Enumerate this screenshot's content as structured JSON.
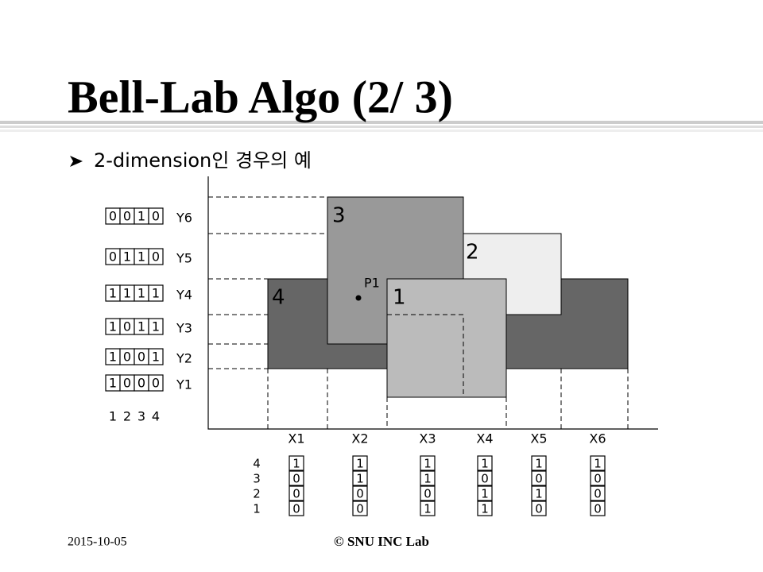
{
  "title": "Bell-Lab Algo (2/ 3)",
  "bullet": "2-dimension인 경우의 예",
  "rect_labels": [
    "3",
    "2",
    "4",
    "1"
  ],
  "point_label": "P1",
  "y_labels": [
    "Y6",
    "Y5",
    "Y4",
    "Y3",
    "Y2",
    "Y1"
  ],
  "y_bits": [
    [
      "0",
      "0",
      "1",
      "0"
    ],
    [
      "0",
      "1",
      "1",
      "0"
    ],
    [
      "1",
      "1",
      "1",
      "1"
    ],
    [
      "1",
      "0",
      "1",
      "1"
    ],
    [
      "1",
      "0",
      "0",
      "1"
    ],
    [
      "1",
      "0",
      "0",
      "0"
    ]
  ],
  "y_bit_index": [
    "1",
    "2",
    "3",
    "4"
  ],
  "x_labels": [
    "X1",
    "X2",
    "X3",
    "X4",
    "X5",
    "X6"
  ],
  "x_bits": [
    [
      "1",
      "0",
      "0",
      "0"
    ],
    [
      "1",
      "1",
      "0",
      "0"
    ],
    [
      "1",
      "1",
      "0",
      "1"
    ],
    [
      "1",
      "0",
      "1",
      "1"
    ],
    [
      "1",
      "0",
      "1",
      "0"
    ],
    [
      "1",
      "0",
      "0",
      "0"
    ]
  ],
  "x_bit_index": [
    "4",
    "3",
    "2",
    "1"
  ],
  "footer": {
    "date": "2015-10-05",
    "lab": "© SNU INC Lab"
  }
}
